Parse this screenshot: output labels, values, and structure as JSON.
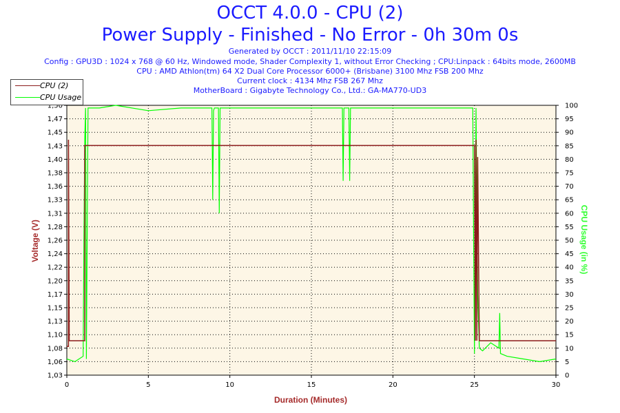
{
  "header": {
    "title_line1": "OCCT 4.0.0 - CPU (2)",
    "title_line2": "Power Supply - Finished - No Error - 0h 30m 0s",
    "generated": "Generated by OCCT : 2011/11/10 22:15:09",
    "config": "Config : GPU3D : 1024 x 768 @ 60 Hz, Windowed mode, Shader Complexity 1, without Error Checking ; CPU:Linpack : 64bits mode, 2600MB",
    "cpu": "CPU : AMD Athlon(tm) 64 X2 Dual Core Processor 6000+ (Brisbane) 3100 Mhz FSB 200 Mhz",
    "clock": "Current clock : 4134 Mhz FSB 267 Mhz",
    "motherboard": "MotherBoard : Gigabyte Technology Co., Ltd.: GA-MA770-UD3"
  },
  "legend": {
    "items": [
      {
        "label": "CPU (2)",
        "color": "#8b1a1a"
      },
      {
        "label": "CPU Usage",
        "color": "#00ff00"
      }
    ]
  },
  "colors": {
    "plot_background": "#fdf6e6",
    "voltage_axis": "#a52a2a",
    "usage_axis": "#33ff33",
    "text_blue": "#1a1aff"
  },
  "chart_data": {
    "type": "line",
    "xlabel": "Duration (Minutes)",
    "ylabel_left": "Voltage (V)",
    "ylabel_right": "CPU Usage (in %)",
    "xlim": [
      0,
      30
    ],
    "ylim_left": [
      1.03,
      1.5
    ],
    "ylim_right": [
      0,
      100
    ],
    "x_ticks": [
      "0",
      "5",
      "10",
      "15",
      "20",
      "25",
      "30"
    ],
    "y_ticks_left": [
      "1,03",
      "1,06",
      "1,08",
      "1,10",
      "1,13",
      "1,15",
      "1,17",
      "1,20",
      "1,22",
      "1,24",
      "1,26",
      "1,28",
      "1,31",
      "1,33",
      "1,36",
      "1,38",
      "1,40",
      "1,43",
      "1,45",
      "1,47",
      "1,50"
    ],
    "y_ticks_right": [
      "0",
      "5",
      "10",
      "15",
      "20",
      "25",
      "30",
      "35",
      "40",
      "45",
      "50",
      "55",
      "60",
      "65",
      "70",
      "75",
      "80",
      "85",
      "90",
      "95",
      "100"
    ],
    "grid": true,
    "legend_position": "top-left",
    "series": [
      {
        "name": "CPU (2)",
        "axis": "left",
        "x": [
          0,
          0.1,
          0.1,
          0.15,
          1.05,
          1.1,
          1.1,
          25.0,
          25.05,
          25.1,
          25.15,
          25.2,
          25.3,
          30
        ],
        "y": [
          1.08,
          1.08,
          1.44,
          1.09,
          1.09,
          1.09,
          1.43,
          1.43,
          1.09,
          1.44,
          1.09,
          1.41,
          1.09,
          1.09
        ]
      },
      {
        "name": "CPU Usage",
        "axis": "right",
        "x": [
          0,
          0.5,
          1.0,
          1.05,
          1.1,
          1.15,
          1.2,
          1.3,
          2,
          3,
          5,
          7,
          8.9,
          8.95,
          9.0,
          9.05,
          9.3,
          9.35,
          9.4,
          9.5,
          12,
          15,
          16.9,
          16.95,
          17.0,
          17.3,
          17.35,
          17.4,
          17.5,
          20,
          22,
          24.9,
          24.95,
          25.0,
          25.1,
          25.2,
          25.3,
          25.5,
          26,
          26.5,
          26.55,
          26.6,
          27,
          28,
          29,
          30
        ],
        "y": [
          6,
          5,
          7,
          50,
          87,
          99,
          6,
          99,
          99,
          100,
          98,
          99,
          99,
          65,
          98,
          99,
          99,
          60,
          99,
          99,
          99,
          99,
          99,
          72,
          99,
          99,
          72,
          99,
          99,
          99,
          99,
          99,
          50,
          8,
          99,
          30,
          10,
          9,
          12,
          10,
          23,
          8,
          7,
          6,
          5,
          6
        ]
      }
    ]
  }
}
